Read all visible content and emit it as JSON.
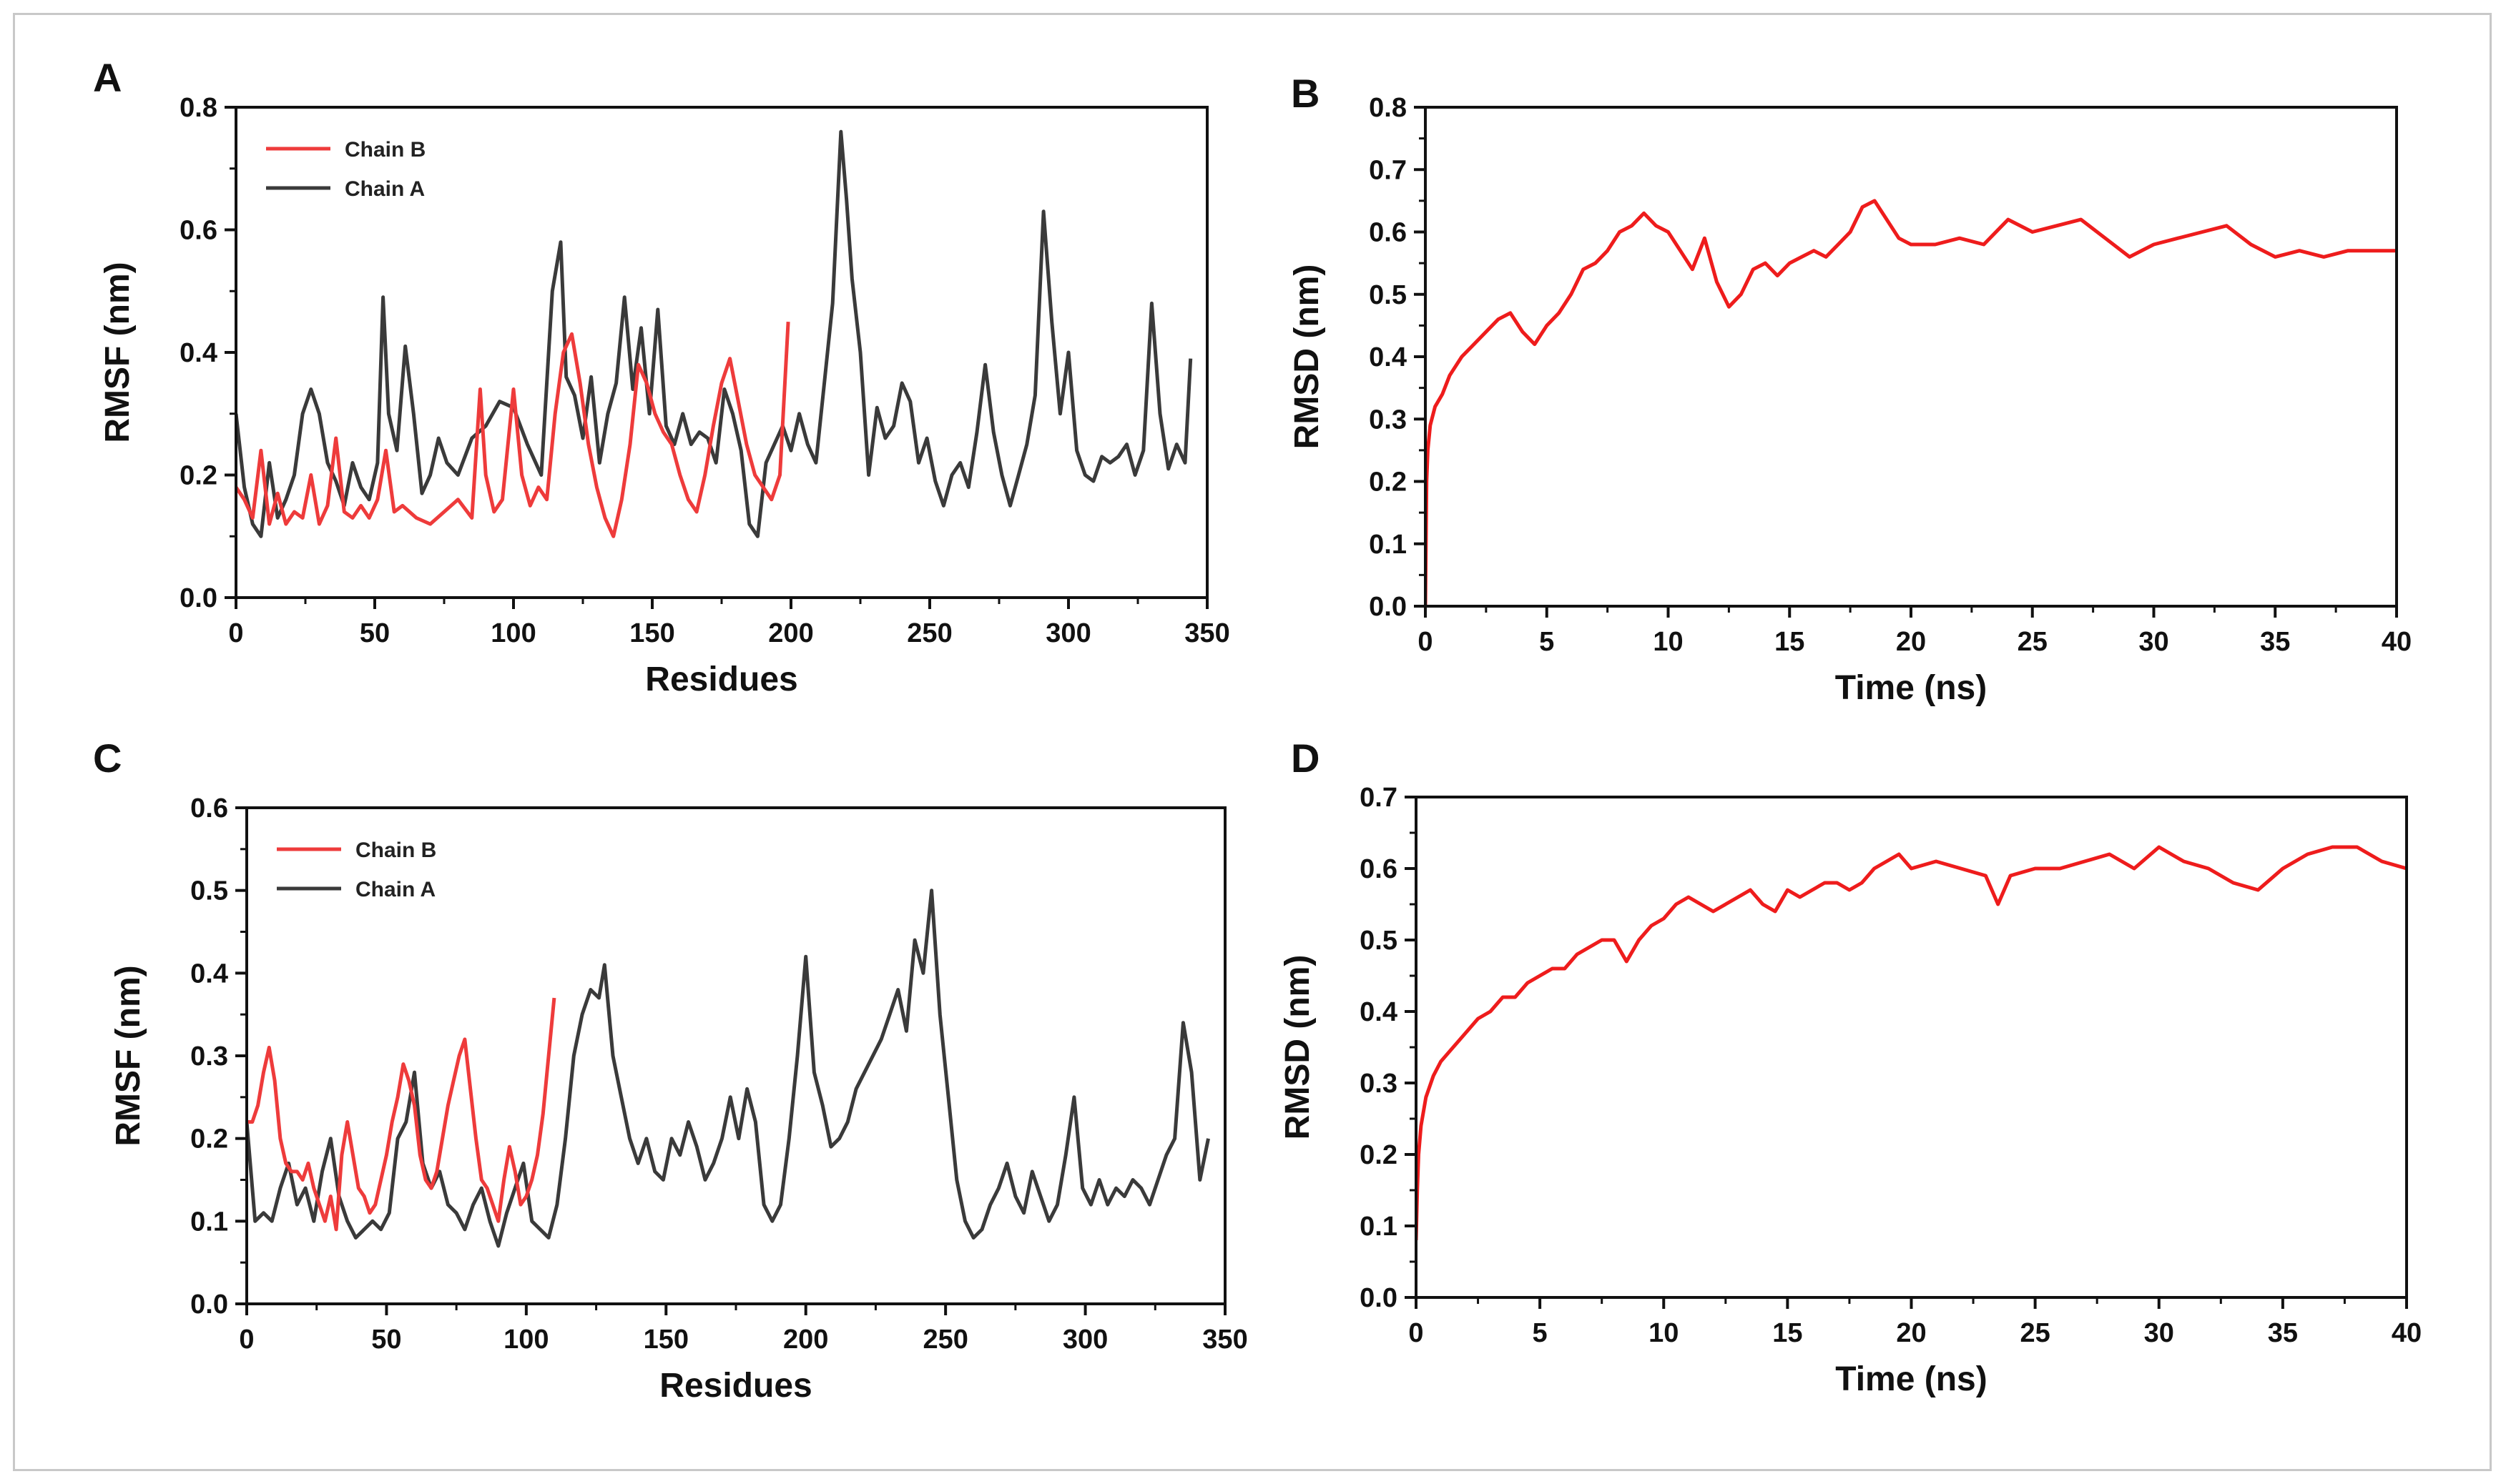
{
  "chart_data": [
    {
      "panel_label": "A",
      "type": "line",
      "xlabel": "Residues",
      "ylabel": "RMSF (nm)",
      "xlim": [
        0,
        350
      ],
      "ylim": [
        0.0,
        0.8
      ],
      "xticks": [
        "0",
        "50",
        "100",
        "150",
        "200",
        "250",
        "300",
        "350"
      ],
      "yticks": [
        "0.0",
        "0.2",
        "0.4",
        "0.6",
        "0.8"
      ],
      "legend": [
        "Chain B",
        "Chain A"
      ],
      "legend_position": "top-left",
      "series": [
        {
          "name": "Chain A",
          "color": "#3a3a3a",
          "x": [
            0,
            3,
            6,
            9,
            12,
            15,
            18,
            21,
            24,
            27,
            30,
            33,
            36,
            39,
            42,
            45,
            48,
            51,
            53,
            55,
            58,
            61,
            64,
            67,
            70,
            73,
            76,
            80,
            85,
            90,
            95,
            100,
            105,
            110,
            114,
            117,
            119,
            122,
            125,
            128,
            131,
            134,
            137,
            140,
            143,
            146,
            149,
            152,
            155,
            158,
            161,
            164,
            167,
            170,
            173,
            176,
            179,
            182,
            185,
            188,
            191,
            194,
            197,
            200,
            203,
            206,
            209,
            212,
            215,
            218,
            220,
            222,
            225,
            228,
            231,
            234,
            237,
            240,
            243,
            246,
            249,
            252,
            255,
            258,
            261,
            264,
            267,
            270,
            273,
            276,
            279,
            282,
            285,
            288,
            291,
            294,
            297,
            300,
            303,
            306,
            309,
            312,
            315,
            318,
            321,
            324,
            327,
            330,
            333,
            336,
            339,
            342,
            344
          ],
          "y": [
            0.3,
            0.18,
            0.12,
            0.1,
            0.22,
            0.13,
            0.16,
            0.2,
            0.3,
            0.34,
            0.3,
            0.22,
            0.19,
            0.15,
            0.22,
            0.18,
            0.16,
            0.22,
            0.49,
            0.3,
            0.24,
            0.41,
            0.3,
            0.17,
            0.2,
            0.26,
            0.22,
            0.2,
            0.26,
            0.28,
            0.32,
            0.31,
            0.25,
            0.2,
            0.5,
            0.58,
            0.36,
            0.33,
            0.26,
            0.36,
            0.22,
            0.3,
            0.35,
            0.49,
            0.34,
            0.44,
            0.3,
            0.47,
            0.28,
            0.25,
            0.3,
            0.25,
            0.27,
            0.26,
            0.22,
            0.34,
            0.3,
            0.24,
            0.12,
            0.1,
            0.22,
            0.25,
            0.28,
            0.24,
            0.3,
            0.25,
            0.22,
            0.35,
            0.48,
            0.76,
            0.65,
            0.52,
            0.4,
            0.2,
            0.31,
            0.26,
            0.28,
            0.35,
            0.32,
            0.22,
            0.26,
            0.19,
            0.15,
            0.2,
            0.22,
            0.18,
            0.27,
            0.38,
            0.27,
            0.2,
            0.15,
            0.2,
            0.25,
            0.33,
            0.63,
            0.45,
            0.3,
            0.4,
            0.24,
            0.2,
            0.19,
            0.23,
            0.22,
            0.23,
            0.25,
            0.2,
            0.24,
            0.48,
            0.3,
            0.21,
            0.25,
            0.22,
            0.39
          ]
        },
        {
          "name": "Chain B",
          "color": "#ee3b3b",
          "x": [
            0,
            3,
            6,
            9,
            12,
            15,
            18,
            21,
            24,
            27,
            30,
            33,
            36,
            39,
            42,
            45,
            48,
            51,
            54,
            57,
            60,
            65,
            70,
            75,
            80,
            85,
            88,
            90,
            93,
            96,
            100,
            103,
            106,
            109,
            112,
            115,
            118,
            121,
            124,
            127,
            130,
            133,
            136,
            139,
            142,
            145,
            148,
            151,
            154,
            157,
            160,
            163,
            166,
            169,
            172,
            175,
            178,
            181,
            184,
            187,
            190,
            193,
            196,
            199
          ],
          "y": [
            0.18,
            0.16,
            0.13,
            0.24,
            0.12,
            0.17,
            0.12,
            0.14,
            0.13,
            0.2,
            0.12,
            0.15,
            0.26,
            0.14,
            0.13,
            0.15,
            0.13,
            0.16,
            0.24,
            0.14,
            0.15,
            0.13,
            0.12,
            0.14,
            0.16,
            0.13,
            0.34,
            0.2,
            0.14,
            0.16,
            0.34,
            0.2,
            0.15,
            0.18,
            0.16,
            0.3,
            0.4,
            0.43,
            0.35,
            0.25,
            0.18,
            0.13,
            0.1,
            0.16,
            0.25,
            0.38,
            0.35,
            0.3,
            0.27,
            0.25,
            0.2,
            0.16,
            0.14,
            0.2,
            0.28,
            0.35,
            0.39,
            0.32,
            0.25,
            0.2,
            0.18,
            0.16,
            0.2,
            0.45
          ]
        }
      ]
    },
    {
      "panel_label": "B",
      "type": "line",
      "xlabel": "Time (ns)",
      "ylabel": "RMSD (nm)",
      "xlim": [
        0,
        40
      ],
      "ylim": [
        0.0,
        0.8
      ],
      "xticks": [
        "0",
        "5",
        "10",
        "15",
        "20",
        "25",
        "30",
        "35",
        "40"
      ],
      "yticks": [
        "0.0",
        "0.1",
        "0.2",
        "0.3",
        "0.4",
        "0.5",
        "0.6",
        "0.7",
        "0.8"
      ],
      "series": [
        {
          "name": "RMSD",
          "color": "#ee1c1c",
          "x": [
            0,
            0.05,
            0.1,
            0.2,
            0.4,
            0.7,
            1,
            1.5,
            2,
            2.5,
            3,
            3.5,
            4,
            4.5,
            5,
            5.5,
            6,
            6.5,
            7,
            7.5,
            8,
            8.5,
            9,
            9.5,
            10,
            10.5,
            11,
            11.5,
            12,
            12.5,
            13,
            13.5,
            14,
            14.5,
            15,
            15.5,
            16,
            16.5,
            17,
            17.5,
            18,
            18.5,
            19,
            19.5,
            20,
            21,
            22,
            23,
            24,
            25,
            26,
            27,
            28,
            29,
            30,
            31,
            32,
            33,
            34,
            35,
            36,
            37,
            38,
            39,
            40
          ],
          "y": [
            0.0,
            0.2,
            0.25,
            0.29,
            0.32,
            0.34,
            0.37,
            0.4,
            0.42,
            0.44,
            0.46,
            0.47,
            0.44,
            0.42,
            0.45,
            0.47,
            0.5,
            0.54,
            0.55,
            0.57,
            0.6,
            0.61,
            0.63,
            0.61,
            0.6,
            0.57,
            0.54,
            0.59,
            0.52,
            0.48,
            0.5,
            0.54,
            0.55,
            0.53,
            0.55,
            0.56,
            0.57,
            0.56,
            0.58,
            0.6,
            0.64,
            0.65,
            0.62,
            0.59,
            0.58,
            0.58,
            0.59,
            0.58,
            0.62,
            0.6,
            0.61,
            0.62,
            0.59,
            0.56,
            0.58,
            0.59,
            0.6,
            0.61,
            0.58,
            0.56,
            0.57,
            0.56,
            0.57,
            0.57,
            0.57
          ]
        }
      ]
    },
    {
      "panel_label": "C",
      "type": "line",
      "xlabel": "Residues",
      "ylabel": "RMSF (nm)",
      "xlim": [
        0,
        350
      ],
      "ylim": [
        0.0,
        0.6
      ],
      "xticks": [
        "0",
        "50",
        "100",
        "150",
        "200",
        "250",
        "300",
        "350"
      ],
      "yticks": [
        "0.0",
        "0.1",
        "0.2",
        "0.3",
        "0.4",
        "0.5",
        "0.6"
      ],
      "legend": [
        "Chain B",
        "Chain A"
      ],
      "legend_position": "top-left",
      "series": [
        {
          "name": "Chain A",
          "color": "#3a3a3a",
          "x": [
            0,
            3,
            6,
            9,
            12,
            15,
            18,
            21,
            24,
            27,
            30,
            33,
            36,
            39,
            42,
            45,
            48,
            51,
            54,
            57,
            60,
            63,
            66,
            69,
            72,
            75,
            78,
            81,
            84,
            87,
            90,
            93,
            96,
            99,
            102,
            105,
            108,
            111,
            114,
            117,
            120,
            123,
            126,
            128,
            131,
            134,
            137,
            140,
            143,
            146,
            149,
            152,
            155,
            158,
            161,
            164,
            167,
            170,
            173,
            176,
            179,
            182,
            185,
            188,
            191,
            194,
            197,
            200,
            203,
            206,
            209,
            212,
            215,
            218,
            221,
            224,
            227,
            230,
            233,
            236,
            239,
            242,
            245,
            248,
            251,
            254,
            257,
            260,
            263,
            266,
            269,
            272,
            275,
            278,
            281,
            284,
            287,
            290,
            293,
            296,
            299,
            302,
            305,
            308,
            311,
            314,
            317,
            320,
            323,
            326,
            329,
            332,
            335,
            338,
            341,
            344
          ],
          "y": [
            0.22,
            0.1,
            0.11,
            0.1,
            0.14,
            0.17,
            0.12,
            0.14,
            0.1,
            0.16,
            0.2,
            0.13,
            0.1,
            0.08,
            0.09,
            0.1,
            0.09,
            0.11,
            0.2,
            0.22,
            0.28,
            0.17,
            0.14,
            0.16,
            0.12,
            0.11,
            0.09,
            0.12,
            0.14,
            0.1,
            0.07,
            0.11,
            0.14,
            0.17,
            0.1,
            0.09,
            0.08,
            0.12,
            0.2,
            0.3,
            0.35,
            0.38,
            0.37,
            0.41,
            0.3,
            0.25,
            0.2,
            0.17,
            0.2,
            0.16,
            0.15,
            0.2,
            0.18,
            0.22,
            0.19,
            0.15,
            0.17,
            0.2,
            0.25,
            0.2,
            0.26,
            0.22,
            0.12,
            0.1,
            0.12,
            0.2,
            0.3,
            0.42,
            0.28,
            0.24,
            0.19,
            0.2,
            0.22,
            0.26,
            0.28,
            0.3,
            0.32,
            0.35,
            0.38,
            0.33,
            0.44,
            0.4,
            0.5,
            0.35,
            0.25,
            0.15,
            0.1,
            0.08,
            0.09,
            0.12,
            0.14,
            0.17,
            0.13,
            0.11,
            0.16,
            0.13,
            0.1,
            0.12,
            0.18,
            0.25,
            0.14,
            0.12,
            0.15,
            0.12,
            0.14,
            0.13,
            0.15,
            0.14,
            0.12,
            0.15,
            0.18,
            0.2,
            0.34,
            0.28,
            0.15,
            0.2
          ]
        },
        {
          "name": "Chain B",
          "color": "#ee3b3b",
          "x": [
            0,
            2,
            4,
            6,
            8,
            10,
            12,
            14,
            16,
            18,
            20,
            22,
            24,
            26,
            28,
            30,
            32,
            34,
            36,
            38,
            40,
            42,
            44,
            46,
            48,
            50,
            52,
            54,
            56,
            58,
            60,
            62,
            64,
            66,
            68,
            70,
            72,
            74,
            76,
            78,
            80,
            82,
            84,
            86,
            88,
            90,
            92,
            94,
            96,
            98,
            100,
            102,
            104,
            106,
            108,
            110
          ],
          "y": [
            0.22,
            0.22,
            0.24,
            0.28,
            0.31,
            0.27,
            0.2,
            0.17,
            0.16,
            0.16,
            0.15,
            0.17,
            0.14,
            0.12,
            0.1,
            0.13,
            0.09,
            0.18,
            0.22,
            0.18,
            0.14,
            0.13,
            0.11,
            0.12,
            0.15,
            0.18,
            0.22,
            0.25,
            0.29,
            0.27,
            0.24,
            0.18,
            0.15,
            0.14,
            0.16,
            0.2,
            0.24,
            0.27,
            0.3,
            0.32,
            0.26,
            0.2,
            0.15,
            0.14,
            0.12,
            0.1,
            0.15,
            0.19,
            0.16,
            0.12,
            0.13,
            0.15,
            0.18,
            0.23,
            0.3,
            0.37
          ]
        }
      ]
    },
    {
      "panel_label": "D",
      "type": "line",
      "xlabel": "Time (ns)",
      "ylabel": "RMSD (nm)",
      "xlim": [
        0,
        40
      ],
      "ylim": [
        0.0,
        0.7
      ],
      "xticks": [
        "0",
        "5",
        "10",
        "15",
        "20",
        "25",
        "30",
        "35",
        "40"
      ],
      "yticks": [
        "0.0",
        "0.1",
        "0.2",
        "0.3",
        "0.4",
        "0.5",
        "0.6",
        "0.7"
      ],
      "series": [
        {
          "name": "RMSD",
          "color": "#ee1c1c",
          "x": [
            0,
            0.05,
            0.1,
            0.2,
            0.4,
            0.7,
            1,
            1.5,
            2,
            2.5,
            3,
            3.5,
            4,
            4.5,
            5,
            5.5,
            6,
            6.5,
            7,
            7.5,
            8,
            8.5,
            9,
            9.5,
            10,
            10.5,
            11,
            11.5,
            12,
            12.5,
            13,
            13.5,
            14,
            14.5,
            15,
            15.5,
            16,
            16.5,
            17,
            17.5,
            18,
            18.5,
            19,
            19.5,
            20,
            21,
            22,
            23,
            23.5,
            24,
            25,
            26,
            27,
            28,
            29,
            30,
            31,
            32,
            33,
            34,
            35,
            36,
            37,
            38,
            39,
            40
          ],
          "y": [
            0.08,
            0.15,
            0.2,
            0.24,
            0.28,
            0.31,
            0.33,
            0.35,
            0.37,
            0.39,
            0.4,
            0.42,
            0.42,
            0.44,
            0.45,
            0.46,
            0.46,
            0.48,
            0.49,
            0.5,
            0.5,
            0.47,
            0.5,
            0.52,
            0.53,
            0.55,
            0.56,
            0.55,
            0.54,
            0.55,
            0.56,
            0.57,
            0.55,
            0.54,
            0.57,
            0.56,
            0.57,
            0.58,
            0.58,
            0.57,
            0.58,
            0.6,
            0.61,
            0.62,
            0.6,
            0.61,
            0.6,
            0.59,
            0.55,
            0.59,
            0.6,
            0.6,
            0.61,
            0.62,
            0.6,
            0.63,
            0.61,
            0.6,
            0.58,
            0.57,
            0.6,
            0.62,
            0.63,
            0.63,
            0.61,
            0.6
          ]
        }
      ]
    }
  ]
}
